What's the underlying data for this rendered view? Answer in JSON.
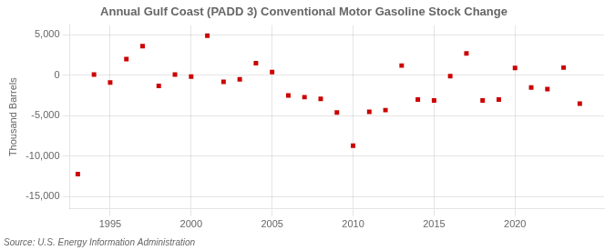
{
  "chart_data": {
    "type": "scatter",
    "title": "Annual Gulf Coast (PADD 3) Conventional Motor Gasoline Stock Change",
    "ylabel": "Thousand Barrels",
    "annotations": [
      "Source: U.S. Energy Information Administration"
    ],
    "x": [
      1993,
      1994,
      1995,
      1996,
      1997,
      1998,
      1999,
      2000,
      2001,
      2002,
      2003,
      2004,
      2005,
      2006,
      2007,
      2008,
      2009,
      2010,
      2011,
      2012,
      2013,
      2014,
      2015,
      2016,
      2017,
      2018,
      2019,
      2020,
      2021,
      2022,
      2023,
      2024
    ],
    "values": [
      -12200,
      100,
      -900,
      2000,
      3600,
      -1300,
      100,
      -150,
      4900,
      -800,
      -500,
      1500,
      400,
      -2500,
      -2700,
      -2900,
      -4600,
      -8700,
      -4500,
      -4300,
      1200,
      -3000,
      -3100,
      -100,
      2700,
      -3100,
      -3000,
      900,
      -1500,
      -1700,
      950,
      -3500
    ],
    "color": "#cc0000",
    "marker": "square",
    "xlim": [
      1992.5,
      2025.5
    ],
    "xticks": [
      1995,
      2000,
      2005,
      2010,
      2015,
      2020
    ],
    "ylim": [
      -16500,
      6200
    ],
    "yticks": [
      {
        "value": -15000,
        "label": "-15,000"
      },
      {
        "value": -10000,
        "label": "-10,000"
      },
      {
        "value": -5000,
        "label": "-5,000"
      },
      0,
      {
        "value": 5000,
        "label": "5,000"
      }
    ],
    "grid": true
  }
}
